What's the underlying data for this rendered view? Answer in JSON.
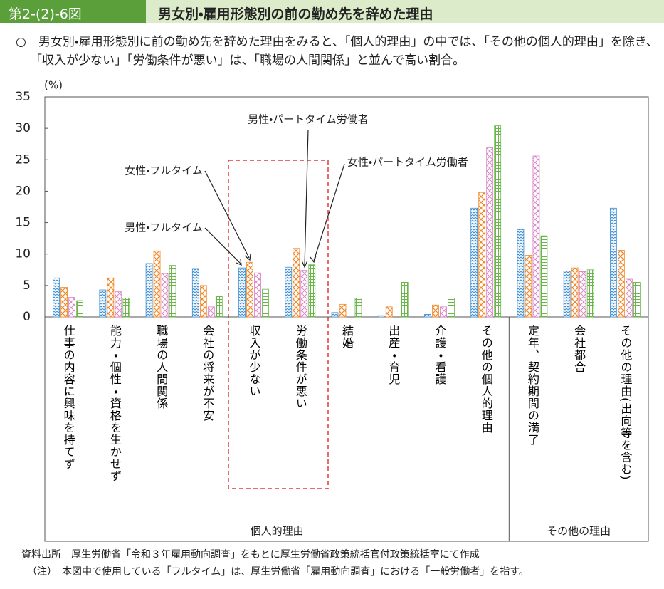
{
  "chart_data": {
    "type": "bar",
    "figure_number": "第2-(2)-6図",
    "title": "男女別・雇用形態別の前の勤め先を辞めた理由",
    "summary": "○　男女別・雇用形態別に前の勤め先を辞めた理由をみると、「個人的理由」の中では、「その他の個人的理由」を除き、「収入が少ない」「労働条件が悪い」は、「職場の人間関係」と並んで高い割合。",
    "y_unit": "(%)",
    "categories": [
      "仕事の内容に興味を持てず",
      "能力・個性・資格を生かせず",
      "職場の人間関係",
      "会社の将来が不安",
      "収入が少ない",
      "労働条件が悪い",
      "結婚",
      "出産・育児",
      "介護・看護",
      "その他の個人的理由",
      "定年、契約期間の満了",
      "会社都合",
      "その他の理由(出向等を含む)"
    ],
    "groups": [
      {
        "label": "個人的理由",
        "count": 10
      },
      {
        "label": "その他の理由",
        "count": 3
      }
    ],
    "series": [
      {
        "name": "男性・フルタイム",
        "color": "#3f8fd2",
        "values": [
          6.2,
          4.3,
          8.5,
          7.7,
          7.8,
          7.9,
          0.7,
          0.2,
          0.4,
          17.3,
          13.9,
          7.3,
          17.3
        ]
      },
      {
        "name": "女性・フルタイム",
        "color": "#f08a2c",
        "values": [
          4.7,
          6.2,
          10.5,
          5.0,
          8.7,
          10.9,
          2.0,
          1.6,
          1.9,
          19.8,
          9.8,
          7.8,
          10.6
        ]
      },
      {
        "name": "男性・パートタイム労働者",
        "color": "#d77fc4",
        "values": [
          3.1,
          4.0,
          6.9,
          1.6,
          7.0,
          7.4,
          0,
          0,
          1.6,
          26.9,
          25.6,
          7.2,
          6.0
        ]
      },
      {
        "name": "女性・パートタイム労働者",
        "color": "#6ab64a",
        "values": [
          2.6,
          3.0,
          8.2,
          3.3,
          4.4,
          8.3,
          3.0,
          5.5,
          3.0,
          30.4,
          12.9,
          7.5,
          5.5
        ]
      }
    ],
    "ylim": [
      0,
      35
    ],
    "yticks": [
      0,
      5,
      10,
      15,
      20,
      25,
      30,
      35
    ],
    "source": "資料出所　厚生労働省「令和３年雇用動向調査」をもとに厚生労働省政策統括官付政策統括室にて作成",
    "note": "（注）　本図中で使用している「フルタイム」は、厚生労働省「雇用動向調査」における「一般労働者」を指す。"
  }
}
